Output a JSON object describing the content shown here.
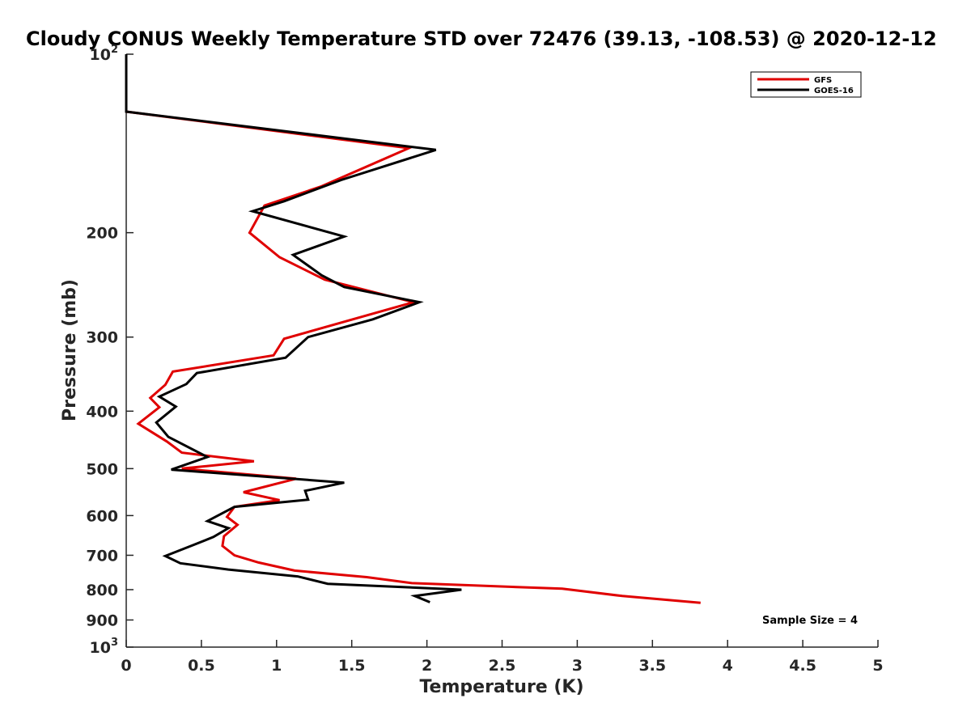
{
  "chart_data": {
    "type": "line",
    "title": "Cloudy CONUS Weekly Temperature STD over 72476 (39.13, -108.53) @ 2020-12-12",
    "xlabel": "Temperature (K)",
    "ylabel": "Pressure (mb)",
    "xlim": [
      0,
      5
    ],
    "ylim": [
      100,
      1000
    ],
    "y_scale": "log",
    "y_reversed": true,
    "grid": false,
    "legend_position": "top-right",
    "x_ticks": [
      "0",
      "0.5",
      "1",
      "1.5",
      "2",
      "2.5",
      "3",
      "3.5",
      "4",
      "4.5",
      "5"
    ],
    "x_tick_values": [
      0,
      0.5,
      1,
      1.5,
      2,
      2.5,
      3,
      3.5,
      4,
      4.5,
      5
    ],
    "y_ticks": [
      {
        "value": 100,
        "base": "10",
        "exp": "2"
      },
      {
        "value": 200,
        "label": "200"
      },
      {
        "value": 300,
        "label": "300"
      },
      {
        "value": 400,
        "label": "400"
      },
      {
        "value": 500,
        "label": "500"
      },
      {
        "value": 600,
        "label": "600"
      },
      {
        "value": 700,
        "label": "700"
      },
      {
        "value": 800,
        "label": "800"
      },
      {
        "value": 900,
        "label": "900"
      },
      {
        "value": 1000,
        "base": "10",
        "exp": "3"
      }
    ],
    "series": [
      {
        "name": "GFS",
        "color": "#e00000",
        "points": [
          [
            0,
            100
          ],
          [
            0,
            125
          ],
          [
            1.88,
            144
          ],
          [
            1.3,
            167
          ],
          [
            0.92,
            180
          ],
          [
            0.82,
            200
          ],
          [
            1.02,
            220
          ],
          [
            1.32,
            240
          ],
          [
            1.91,
            262
          ],
          [
            1.05,
            302
          ],
          [
            0.98,
            322
          ],
          [
            0.31,
            343
          ],
          [
            0.26,
            361
          ],
          [
            0.16,
            380
          ],
          [
            0.22,
            394
          ],
          [
            0.08,
            420
          ],
          [
            0.27,
            450
          ],
          [
            0.37,
            470
          ],
          [
            0.85,
            486
          ],
          [
            0.37,
            500
          ],
          [
            1.13,
            520
          ],
          [
            0.78,
            548
          ],
          [
            1.02,
            565
          ],
          [
            0.72,
            580
          ],
          [
            0.67,
            603
          ],
          [
            0.74,
            622
          ],
          [
            0.65,
            650
          ],
          [
            0.64,
            675
          ],
          [
            0.72,
            700
          ],
          [
            0.88,
            720
          ],
          [
            1.12,
            743
          ],
          [
            1.6,
            762
          ],
          [
            1.9,
            780
          ],
          [
            2.9,
            797
          ],
          [
            3.3,
            820
          ],
          [
            3.82,
            842
          ]
        ]
      },
      {
        "name": "GOES-16",
        "color": "#000000",
        "points": [
          [
            0,
            100
          ],
          [
            0,
            125
          ],
          [
            2.06,
            145
          ],
          [
            1.43,
            163
          ],
          [
            1.05,
            177
          ],
          [
            0.84,
            184
          ],
          [
            1.45,
            203
          ],
          [
            1.11,
            218
          ],
          [
            1.3,
            236
          ],
          [
            1.45,
            247
          ],
          [
            1.95,
            262
          ],
          [
            1.64,
            280
          ],
          [
            1.21,
            300
          ],
          [
            1.06,
            325
          ],
          [
            0.47,
            345
          ],
          [
            0.4,
            360
          ],
          [
            0.22,
            378
          ],
          [
            0.33,
            393
          ],
          [
            0.2,
            418
          ],
          [
            0.28,
            442
          ],
          [
            0.54,
            478
          ],
          [
            0.3,
            502
          ],
          [
            1.45,
            528
          ],
          [
            1.19,
            545
          ],
          [
            1.21,
            564
          ],
          [
            0.72,
            580
          ],
          [
            0.54,
            613
          ],
          [
            0.68,
            630
          ],
          [
            0.58,
            652
          ],
          [
            0.45,
            672
          ],
          [
            0.26,
            702
          ],
          [
            0.36,
            722
          ],
          [
            0.68,
            740
          ],
          [
            1.14,
            760
          ],
          [
            1.34,
            782
          ],
          [
            2.23,
            800
          ],
          [
            1.92,
            820
          ],
          [
            2.02,
            840
          ]
        ]
      }
    ],
    "annotations": [
      "Sample Size = 4"
    ]
  }
}
